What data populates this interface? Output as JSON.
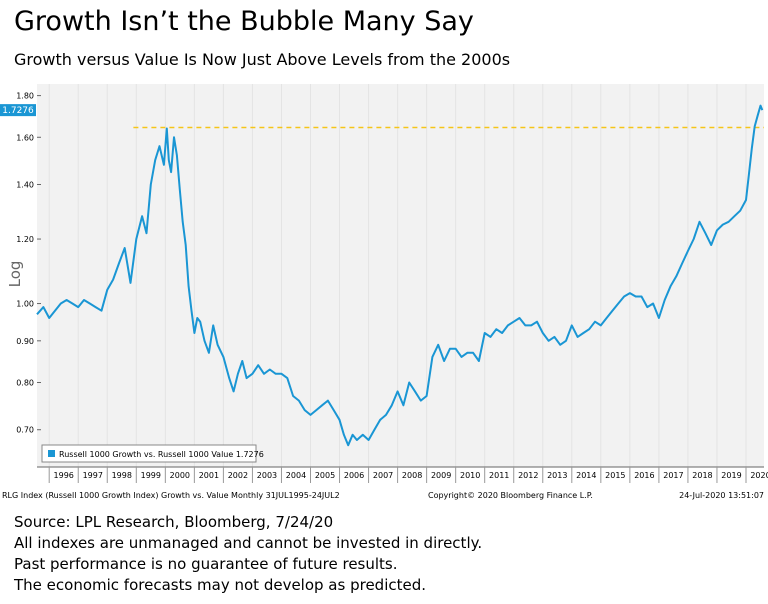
{
  "header": {
    "title": "Growth Isn’t the Bubble Many Say",
    "subtitle": "Growth versus Value Is Now Just Above Levels from the 2000s"
  },
  "footer": {
    "lines": [
      "Source: LPL Research, Bloomberg, 7/24/20",
      "All indexes are unmanaged and cannot be invested in directly.",
      "Past performance is no guarantee of future results.",
      "The economic forecasts may not develop as predicted."
    ]
  },
  "chart_data": {
    "type": "line",
    "ylabel": "Log",
    "y_scale": "log",
    "ylim": [
      0.63,
      1.86
    ],
    "xlim": [
      1995.58,
      2020.62
    ],
    "y_ticks": [
      0.7,
      0.8,
      0.9,
      1.0,
      1.2,
      1.4,
      1.6,
      1.8
    ],
    "y_tick_labels": [
      "0.70",
      "0.80",
      "0.90",
      "1.00",
      "1.20",
      "1.40",
      "1.60",
      "1.80"
    ],
    "x_tick_labels": [
      "1996",
      "1997",
      "1998",
      "1999",
      "2000",
      "2001",
      "2002",
      "2003",
      "2004",
      "2005",
      "2006",
      "2007",
      "2008",
      "2009",
      "2010",
      "2011",
      "2012",
      "2013",
      "2014",
      "2015",
      "2016",
      "2017",
      "2018",
      "2019",
      "2020"
    ],
    "last_value_label": "1.7276",
    "reference_line": {
      "value": 1.645,
      "style": "dashed",
      "color": "#f5c518"
    },
    "legend": {
      "placement": "bottom-left",
      "label": "Russell 1000 Growth vs. Russell 1000 Value  1.7276"
    },
    "footer_left": "RLG Index (Russell 1000 Growth Index) Growth vs. Value  Monthly 31JUL1995-24JUL2",
    "footer_mid": "Copyright© 2020 Bloomberg Finance L.P.",
    "footer_right": "24-Jul-2020 13:51:07",
    "grid": true,
    "colors": {
      "line": "#1a96d4",
      "plot_bg": "#f2f2f2",
      "label_bg": "#1a96d4"
    },
    "series": [
      {
        "name": "Russell 1000 Growth vs. Russell 1000 Value",
        "x": [
          1995.58,
          1995.8,
          1996.0,
          1996.2,
          1996.4,
          1996.6,
          1996.8,
          1997.0,
          1997.2,
          1997.4,
          1997.6,
          1997.8,
          1998.0,
          1998.2,
          1998.4,
          1998.6,
          1998.8,
          1999.0,
          1999.2,
          1999.35,
          1999.5,
          1999.65,
          1999.8,
          1999.95,
          2000.05,
          2000.12,
          2000.2,
          2000.3,
          2000.4,
          2000.5,
          2000.6,
          2000.7,
          2000.8,
          2000.9,
          2001.0,
          2001.1,
          2001.2,
          2001.35,
          2001.5,
          2001.65,
          2001.8,
          2002.0,
          2002.2,
          2002.35,
          2002.5,
          2002.65,
          2002.8,
          2003.0,
          2003.2,
          2003.4,
          2003.6,
          2003.8,
          2004.0,
          2004.2,
          2004.4,
          2004.6,
          2004.8,
          2005.0,
          2005.2,
          2005.4,
          2005.6,
          2005.8,
          2006.0,
          2006.15,
          2006.3,
          2006.45,
          2006.6,
          2006.8,
          2007.0,
          2007.2,
          2007.4,
          2007.6,
          2007.8,
          2008.0,
          2008.2,
          2008.4,
          2008.6,
          2008.8,
          2009.0,
          2009.2,
          2009.4,
          2009.6,
          2009.8,
          2010.0,
          2010.2,
          2010.4,
          2010.6,
          2010.8,
          2011.0,
          2011.2,
          2011.4,
          2011.6,
          2011.8,
          2012.0,
          2012.2,
          2012.4,
          2012.6,
          2012.8,
          2013.0,
          2013.2,
          2013.4,
          2013.6,
          2013.8,
          2014.0,
          2014.2,
          2014.4,
          2014.6,
          2014.8,
          2015.0,
          2015.2,
          2015.4,
          2015.6,
          2015.8,
          2016.0,
          2016.2,
          2016.4,
          2016.6,
          2016.8,
          2017.0,
          2017.2,
          2017.4,
          2017.6,
          2017.8,
          2018.0,
          2018.2,
          2018.4,
          2018.6,
          2018.8,
          2019.0,
          2019.2,
          2019.4,
          2019.6,
          2019.8,
          2020.0,
          2020.1,
          2020.2,
          2020.3,
          2020.4,
          2020.5,
          2020.56
        ],
        "values": [
          0.97,
          0.99,
          0.96,
          0.98,
          1.0,
          1.01,
          1.0,
          0.99,
          1.01,
          1.0,
          0.99,
          0.98,
          1.04,
          1.07,
          1.12,
          1.17,
          1.06,
          1.2,
          1.28,
          1.22,
          1.4,
          1.5,
          1.56,
          1.48,
          1.64,
          1.5,
          1.45,
          1.6,
          1.52,
          1.38,
          1.26,
          1.18,
          1.05,
          0.98,
          0.92,
          0.96,
          0.95,
          0.9,
          0.87,
          0.94,
          0.89,
          0.86,
          0.81,
          0.78,
          0.82,
          0.85,
          0.81,
          0.82,
          0.84,
          0.82,
          0.83,
          0.82,
          0.82,
          0.81,
          0.77,
          0.76,
          0.74,
          0.73,
          0.74,
          0.75,
          0.76,
          0.74,
          0.72,
          0.69,
          0.67,
          0.69,
          0.68,
          0.69,
          0.68,
          0.7,
          0.72,
          0.73,
          0.75,
          0.78,
          0.75,
          0.8,
          0.78,
          0.76,
          0.77,
          0.86,
          0.89,
          0.85,
          0.88,
          0.88,
          0.86,
          0.87,
          0.87,
          0.85,
          0.92,
          0.91,
          0.93,
          0.92,
          0.94,
          0.95,
          0.96,
          0.94,
          0.94,
          0.95,
          0.92,
          0.9,
          0.91,
          0.89,
          0.9,
          0.94,
          0.91,
          0.92,
          0.93,
          0.95,
          0.94,
          0.96,
          0.98,
          1.0,
          1.02,
          1.03,
          1.02,
          1.02,
          0.99,
          1.0,
          0.96,
          1.01,
          1.05,
          1.08,
          1.12,
          1.16,
          1.2,
          1.26,
          1.22,
          1.18,
          1.23,
          1.25,
          1.26,
          1.28,
          1.3,
          1.34,
          1.44,
          1.55,
          1.65,
          1.7,
          1.75,
          1.7276
        ]
      }
    ]
  }
}
